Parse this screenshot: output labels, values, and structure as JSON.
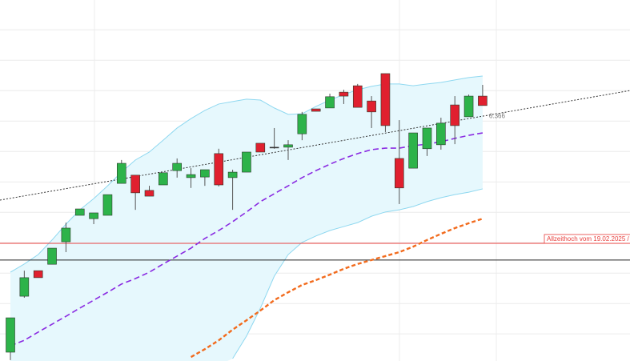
{
  "chart_data": {
    "type": "candlestick",
    "ylim": [
      5.561,
      6.748
    ],
    "yticks": [
      5.65,
      5.75,
      5.85,
      5.95,
      6.05,
      6.15,
      6.25,
      6.35,
      6.45,
      6.55,
      6.65
    ],
    "grid": true,
    "up_color": "#2db34a",
    "down_color": "#e0202f",
    "open": [
      5.59,
      5.774,
      5.858,
      5.879,
      5.953,
      6.04,
      6.029,
      6.04,
      6.145,
      6.172,
      6.122,
      6.14,
      6.187,
      6.164,
      6.166,
      6.243,
      6.164,
      6.182,
      6.277,
      6.264,
      6.264,
      6.308,
      6.39,
      6.393,
      6.445,
      6.466,
      6.416,
      6.506,
      6.227,
      6.195,
      6.259,
      6.272,
      6.403,
      6.364,
      6.432
    ],
    "high": [
      5.703,
      5.858,
      5.858,
      5.932,
      6.016,
      6.061,
      6.048,
      6.108,
      6.222,
      6.172,
      6.137,
      6.18,
      6.227,
      6.195,
      6.19,
      6.259,
      6.19,
      6.248,
      6.277,
      6.327,
      6.287,
      6.38,
      6.39,
      6.44,
      6.453,
      6.472,
      6.432,
      6.506,
      6.353,
      6.311,
      6.327,
      6.361,
      6.432,
      6.437,
      6.469
    ],
    "low": [
      5.564,
      5.769,
      5.835,
      5.879,
      5.919,
      6.04,
      6.011,
      6.04,
      6.145,
      6.058,
      6.103,
      6.14,
      6.164,
      6.13,
      6.137,
      6.135,
      6.058,
      6.182,
      6.248,
      6.259,
      6.222,
      6.287,
      6.382,
      6.393,
      6.406,
      6.395,
      6.327,
      6.314,
      6.077,
      6.195,
      6.235,
      6.256,
      6.274,
      6.364,
      6.401
    ],
    "close": [
      5.703,
      5.835,
      5.835,
      5.932,
      5.998,
      6.061,
      6.048,
      6.108,
      6.211,
      6.114,
      6.103,
      6.18,
      6.211,
      6.174,
      6.19,
      6.14,
      6.182,
      6.248,
      6.248,
      6.264,
      6.272,
      6.372,
      6.382,
      6.43,
      6.432,
      6.395,
      6.38,
      6.335,
      6.13,
      6.311,
      6.327,
      6.343,
      6.335,
      6.432,
      6.401
    ],
    "bollinger_upper": [
      5.853,
      5.88,
      5.911,
      5.959,
      6.011,
      6.058,
      6.095,
      6.137,
      6.182,
      6.222,
      6.248,
      6.287,
      6.327,
      6.358,
      6.385,
      6.406,
      6.414,
      6.422,
      6.419,
      6.393,
      6.372,
      6.374,
      6.398,
      6.419,
      6.437,
      6.453,
      6.464,
      6.472,
      6.472,
      6.466,
      6.472,
      6.477,
      6.485,
      6.493,
      6.498
    ],
    "bollinger_lower": [
      null,
      null,
      null,
      null,
      null,
      null,
      null,
      null,
      null,
      null,
      null,
      null,
      null,
      null,
      null,
      null,
      5.569,
      5.643,
      5.735,
      5.84,
      5.911,
      5.951,
      5.972,
      5.99,
      6.003,
      6.016,
      6.037,
      6.051,
      6.058,
      6.069,
      6.085,
      6.098,
      6.108,
      6.116,
      6.127
    ],
    "bollinger_middle": [
      5.611,
      5.629,
      5.656,
      5.682,
      5.708,
      5.735,
      5.761,
      5.787,
      5.814,
      5.832,
      5.853,
      5.88,
      5.906,
      5.932,
      5.964,
      5.99,
      6.019,
      6.051,
      6.085,
      6.111,
      6.137,
      6.164,
      6.187,
      6.208,
      6.227,
      6.243,
      6.256,
      6.261,
      6.261,
      6.269,
      6.274,
      6.282,
      6.293,
      6.303,
      6.311
    ],
    "moving_average": [
      null,
      null,
      null,
      null,
      null,
      null,
      null,
      null,
      null,
      null,
      null,
      null,
      null,
      5.574,
      5.6,
      5.629,
      5.664,
      5.695,
      5.727,
      5.761,
      5.787,
      5.811,
      5.827,
      5.845,
      5.864,
      5.88,
      5.893,
      5.906,
      5.919,
      5.937,
      5.959,
      5.979,
      5.998,
      6.014,
      6.029
    ],
    "band_color": "#8fd8f0",
    "band_fill": "#e6f8fd",
    "middle_color": "#8a2be2",
    "ma_color": "#f26b1d",
    "trendline": {
      "values": [
        6.096,
        6.366
      ],
      "label": "6.366"
    },
    "all_time_high": {
      "value": 5.948,
      "label": "Allzeithoch vom 19.02.2025 /",
      "color": "#e8403e"
    },
    "price_line": {
      "value": 5.893
    }
  }
}
